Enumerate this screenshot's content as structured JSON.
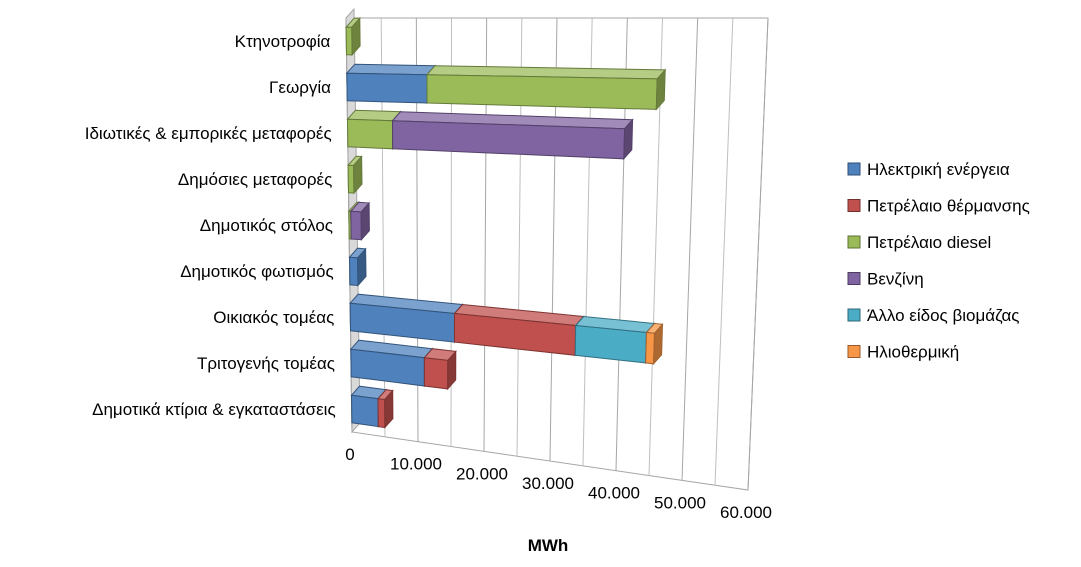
{
  "chart_data": {
    "type": "bar",
    "orientation": "horizontal",
    "stacked": true,
    "three_d": true,
    "categories": [
      "Κτηνοτροφία",
      "Γεωργία",
      "Ιδιωτικές & εμπορικές μεταφορές",
      "Δημόσιες μεταφορές",
      "Δημοτικός στόλος",
      "Δημοτικός φωτισμός",
      "Οικιακός τομέας",
      "Τριτογενής τομέας",
      "Δημοτικά κτίρια & εγκαταστάσεις"
    ],
    "series": [
      {
        "name": "Ηλεκτρική ενέργεια",
        "color": "#4F81BD",
        "values": [
          0,
          11500,
          0,
          0,
          0,
          1200,
          15500,
          11000,
          4000
        ]
      },
      {
        "name": "Πετρέλαιο θέρμανσης",
        "color": "#C0504D",
        "values": [
          0,
          0,
          0,
          0,
          0,
          0,
          18000,
          3500,
          1000
        ]
      },
      {
        "name": "Πετρέλαιο diesel",
        "color": "#9BBB59",
        "values": [
          800,
          33000,
          6500,
          800,
          300,
          0,
          0,
          0,
          0
        ]
      },
      {
        "name": "Βενζίνη",
        "color": "#8064A2",
        "values": [
          0,
          0,
          33500,
          0,
          1500,
          0,
          0,
          0,
          0
        ]
      },
      {
        "name": "Άλλο είδος βιομάζας",
        "color": "#4BACC6",
        "values": [
          0,
          0,
          0,
          0,
          0,
          0,
          10500,
          0,
          0
        ]
      },
      {
        "name": "Ηλιοθερμική",
        "color": "#F79646",
        "values": [
          0,
          0,
          0,
          0,
          0,
          0,
          1200,
          0,
          0
        ]
      }
    ],
    "xlabel": "MWh",
    "ylabel": "",
    "xlim": [
      0,
      60000
    ],
    "tick_labels": [
      "0",
      "10.000",
      "20.000",
      "30.000",
      "40.000",
      "50.000",
      "60.000"
    ],
    "grid": true,
    "legend_position": "right"
  }
}
